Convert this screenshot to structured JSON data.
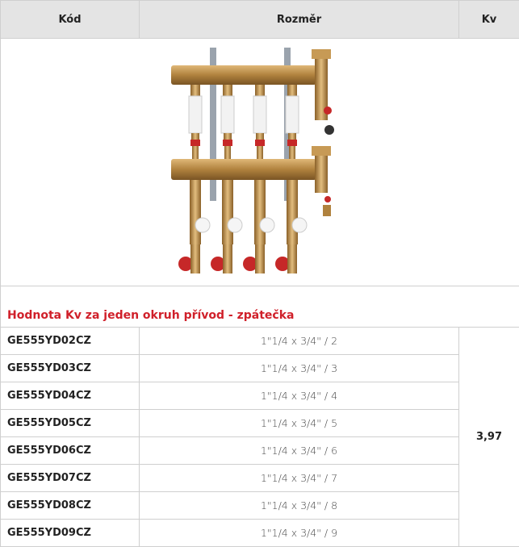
{
  "table": {
    "header": [
      "Kód",
      "Rozměr",
      "Kv"
    ],
    "section_title": "Hodnota Kv za jeden okruh přívod - zpátečka",
    "rows": [
      [
        "GE555YD02CZ",
        "1\"1/4 x 3/4\" / 2"
      ],
      [
        "GE555YD03CZ",
        "1\"1/4 x 3/4\" / 3"
      ],
      [
        "GE555YD04CZ",
        "1\"1/4 x 3/4\" / 4"
      ],
      [
        "GE555YD05CZ",
        "1\"1/4 x 3/4\" / 5"
      ],
      [
        "GE555YD06CZ",
        "1\"1/4 x 3/4\" / 6"
      ],
      [
        "GE555YD07CZ",
        "1\"1/4 x 3/4\" / 7"
      ],
      [
        "GE555YD08CZ",
        "1\"1/4 x 3/4\" / 8"
      ],
      [
        "GE555YD09CZ",
        "1\"1/4 x 3/4\" / 9"
      ]
    ],
    "kv": "3,97"
  }
}
